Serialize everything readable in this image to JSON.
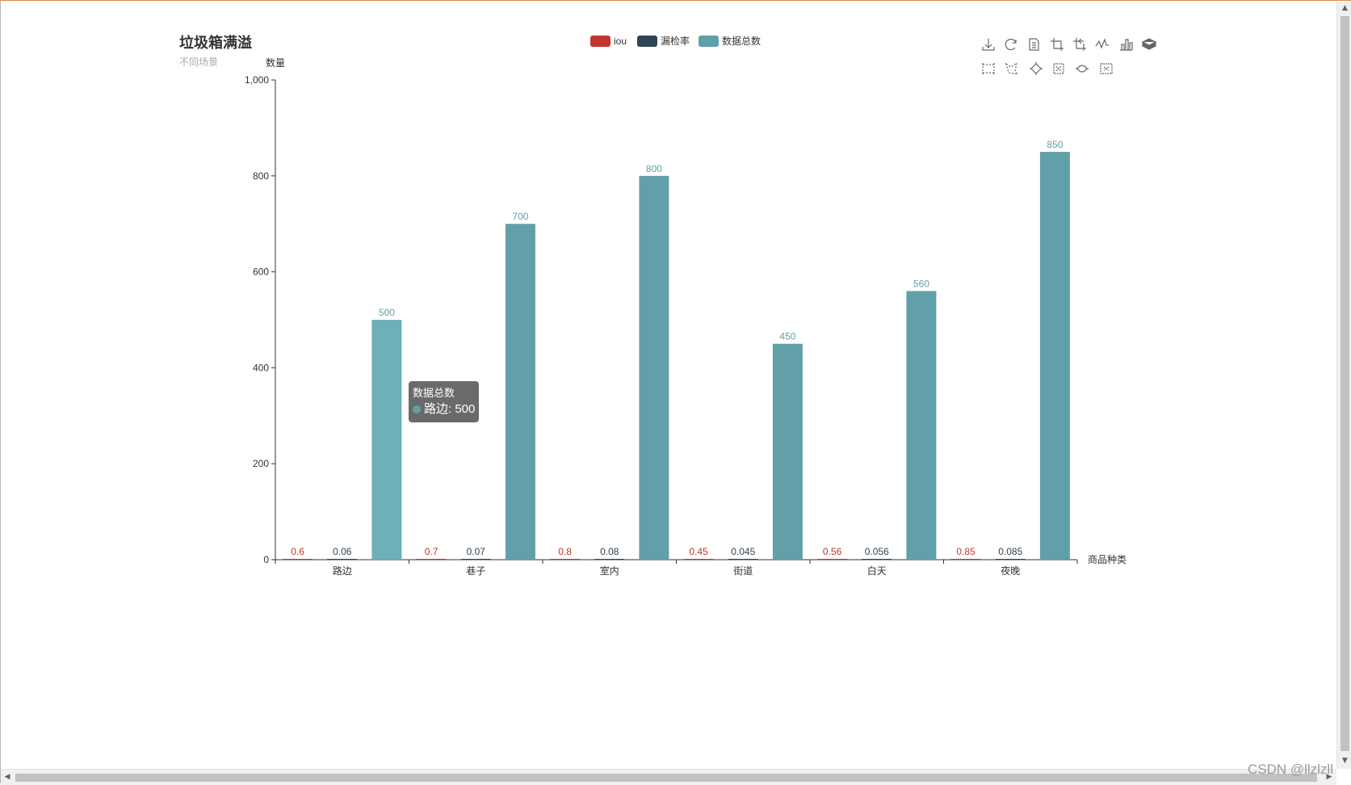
{
  "chart_data": {
    "type": "bar",
    "title": "垃圾箱满溢",
    "subtitle": "不同场景",
    "ylabel": "数量",
    "xlabel": "商品种类",
    "categories": [
      "路边",
      "巷子",
      "室内",
      "街道",
      "白天",
      "夜晚"
    ],
    "series": [
      {
        "name": "iou",
        "color": "#c23531",
        "values": [
          0.6,
          0.7,
          0.8,
          0.45,
          0.56,
          0.85
        ]
      },
      {
        "name": "漏检率",
        "color": "#2f4554",
        "values": [
          0.06,
          0.07,
          0.08,
          0.045,
          0.056,
          0.085
        ]
      },
      {
        "name": "数据总数",
        "color": "#61a0a8",
        "values": [
          500,
          700,
          800,
          450,
          560,
          850
        ]
      }
    ],
    "ylim": [
      0,
      1000
    ],
    "yticks": [
      0,
      200,
      400,
      600,
      800,
      1000
    ],
    "ytick_labels": [
      "0",
      "200",
      "400",
      "600",
      "800",
      "1,000"
    ],
    "grid": false,
    "legend_position": "top-center"
  },
  "toolbox": {
    "icons": [
      "download-icon",
      "refresh-icon",
      "data-view-icon",
      "crop-icon",
      "crop-back-icon",
      "line-type-icon",
      "bar-type-icon",
      "stack-icon",
      "rect-select-icon",
      "polygon-select-icon",
      "keep-select-icon",
      "clear-select-icon",
      "brush-icon",
      "clear-brush-icon"
    ]
  },
  "tooltip": {
    "title": "数据总数",
    "label": "路边: 500",
    "color": "#61a0a8"
  },
  "watermark": "CSDN @llzlzll"
}
